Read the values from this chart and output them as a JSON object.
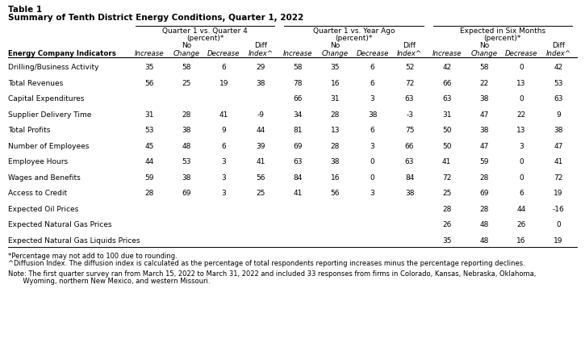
{
  "table_title_line1": "Table 1",
  "table_title_line2": "Summary of Tenth District Energy Conditions, Quarter 1, 2022",
  "col_groups": [
    {
      "label": "Quarter 1 vs. Quarter 4\n(percent)*"
    },
    {
      "label": "Quarter 1 vs. Year Ago\n(percent)*"
    },
    {
      "label": "Expected in Six Months\n(percent)*"
    }
  ],
  "row_label_header": "Energy Company Indicators",
  "rows": [
    {
      "label": "Drilling/Business Activity",
      "q1q4": [
        "35",
        "58",
        "6",
        "29"
      ],
      "q1ya": [
        "58",
        "35",
        "6",
        "52"
      ],
      "e6m": [
        "42",
        "58",
        "0",
        "42"
      ]
    },
    {
      "label": "Total Revenues",
      "q1q4": [
        "56",
        "25",
        "19",
        "38"
      ],
      "q1ya": [
        "78",
        "16",
        "6",
        "72"
      ],
      "e6m": [
        "66",
        "22",
        "13",
        "53"
      ]
    },
    {
      "label": "Capital Expenditures",
      "q1q4": [
        "",
        "",
        "",
        ""
      ],
      "q1ya": [
        "66",
        "31",
        "3",
        "63"
      ],
      "e6m": [
        "63",
        "38",
        "0",
        "63"
      ]
    },
    {
      "label": "Supplier Delivery Time",
      "q1q4": [
        "31",
        "28",
        "41",
        "-9"
      ],
      "q1ya": [
        "34",
        "28",
        "38",
        "-3"
      ],
      "e6m": [
        "31",
        "47",
        "22",
        "9"
      ]
    },
    {
      "label": "Total Profits",
      "q1q4": [
        "53",
        "38",
        "9",
        "44"
      ],
      "q1ya": [
        "81",
        "13",
        "6",
        "75"
      ],
      "e6m": [
        "50",
        "38",
        "13",
        "38"
      ]
    },
    {
      "label": "Number of Employees",
      "q1q4": [
        "45",
        "48",
        "6",
        "39"
      ],
      "q1ya": [
        "69",
        "28",
        "3",
        "66"
      ],
      "e6m": [
        "50",
        "47",
        "3",
        "47"
      ]
    },
    {
      "label": "Employee Hours",
      "q1q4": [
        "44",
        "53",
        "3",
        "41"
      ],
      "q1ya": [
        "63",
        "38",
        "0",
        "63"
      ],
      "e6m": [
        "41",
        "59",
        "0",
        "41"
      ]
    },
    {
      "label": "Wages and Benefits",
      "q1q4": [
        "59",
        "38",
        "3",
        "56"
      ],
      "q1ya": [
        "84",
        "16",
        "0",
        "84"
      ],
      "e6m": [
        "72",
        "28",
        "0",
        "72"
      ]
    },
    {
      "label": "Access to Credit",
      "q1q4": [
        "28",
        "69",
        "3",
        "25"
      ],
      "q1ya": [
        "41",
        "56",
        "3",
        "38"
      ],
      "e6m": [
        "25",
        "69",
        "6",
        "19"
      ]
    },
    {
      "label": "Expected Oil Prices",
      "q1q4": [
        "",
        "",
        "",
        ""
      ],
      "q1ya": [
        "",
        "",
        "",
        ""
      ],
      "e6m": [
        "28",
        "28",
        "44",
        "-16"
      ]
    },
    {
      "label": "Expected Natural Gas Prices",
      "q1q4": [
        "",
        "",
        "",
        ""
      ],
      "q1ya": [
        "",
        "",
        "",
        ""
      ],
      "e6m": [
        "26",
        "48",
        "26",
        "0"
      ]
    },
    {
      "label": "Expected Natural Gas Liquids Prices",
      "q1q4": [
        "",
        "",
        "",
        ""
      ],
      "q1ya": [
        "",
        "",
        "",
        ""
      ],
      "e6m": [
        "35",
        "48",
        "16",
        "19"
      ]
    }
  ],
  "footnote1": "*Percentage may not add to 100 due to rounding.",
  "footnote2": "^Diffusion Index. The diffusion index is calculated as the percentage of total respondents reporting increases minus the percentage reporting declines.",
  "footnote3": "Note: The first quarter survey ran from March 15, 2022 to March 31, 2022 and included 33 responses from firms in Colorado, Kansas, Nebraska, Oklahoma,",
  "footnote4": "       Wyoming, northern New Mexico, and western Missouri.",
  "title_fs": 7.5,
  "header_fs": 6.5,
  "subheader_fs": 6.5,
  "col_header_fs": 6.2,
  "data_fs": 6.5,
  "footnote_fs": 6.0
}
